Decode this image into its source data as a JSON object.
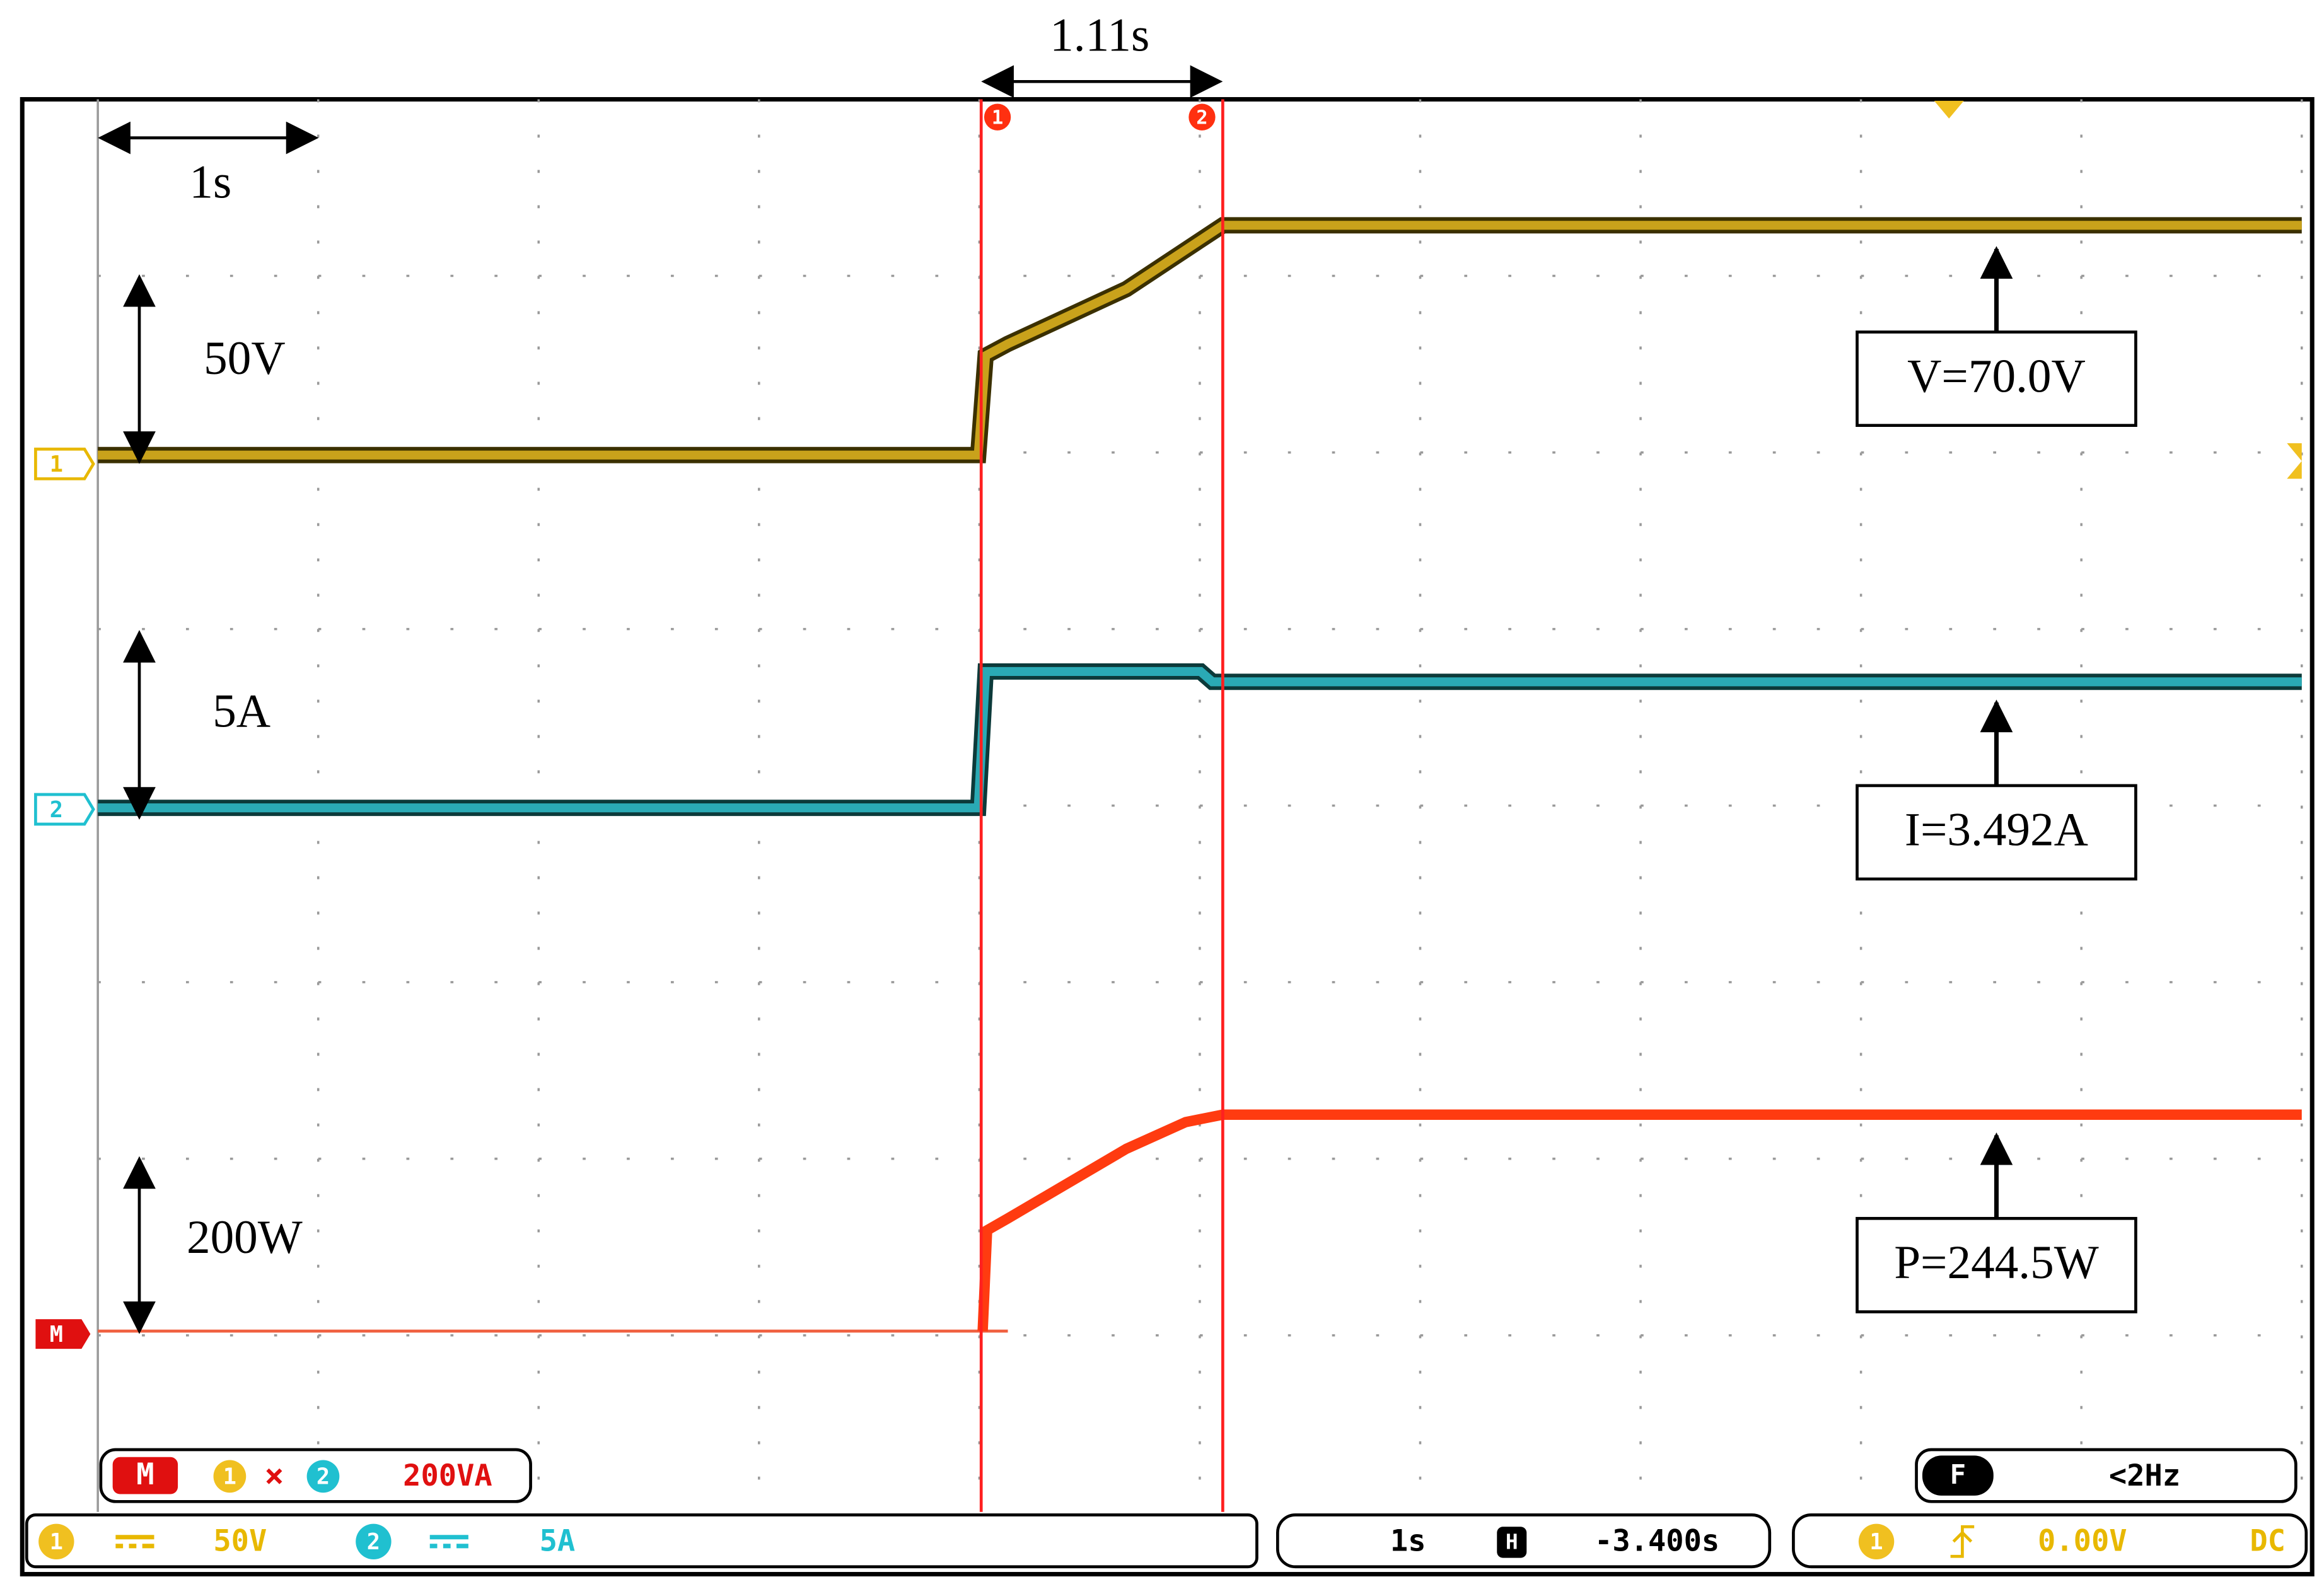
{
  "header": {
    "cursor_span": "1.11s"
  },
  "annotations": {
    "time_scale": "1s",
    "voltage_scale": "50V",
    "current_scale": "5A",
    "power_scale": "200W"
  },
  "cursors": [
    "1",
    "2"
  ],
  "channel_markers": [
    "1",
    "2",
    "M"
  ],
  "measurements": [
    "V=70.0V",
    "I=3.492A",
    "P=244.5W"
  ],
  "math_readout": {
    "label": "M",
    "source1": "1",
    "operator": "×",
    "source2": "2",
    "scale": "200VA"
  },
  "trigger_readout": {
    "label": "F",
    "frequency": "<2Hz"
  },
  "status_bar": {
    "ch1": "1",
    "ch1_scale": "50V",
    "ch2": "2",
    "ch2_scale": "5A",
    "timebase": "1s",
    "horizontal": "H",
    "position": "-3.400s",
    "trigger_source": "1",
    "trigger_level": "0.00V",
    "coupling": "DC"
  }
}
